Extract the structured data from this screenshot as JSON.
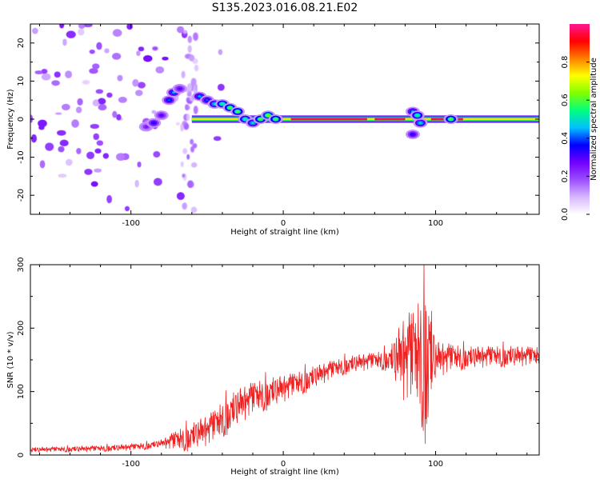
{
  "figure": {
    "title": "S135.2023.016.08.21.E02"
  },
  "chart_data": [
    {
      "type": "heatmap",
      "panel": "spectrogram",
      "xlabel": "Height of straight line (km)",
      "ylabel": "Frequency (Hz)",
      "xlim": [
        -166,
        168
      ],
      "ylim": [
        -25,
        25
      ],
      "xticks": [
        -100,
        0,
        100
      ],
      "xtick_labels": [
        "-100",
        "0",
        "100"
      ],
      "yticks": [
        -20,
        -10,
        0,
        10,
        20
      ],
      "ytick_labels": [
        "-20",
        "-10",
        "0",
        "10",
        "20"
      ],
      "grid": false,
      "colorbar": {
        "label": "Normalized spectral amplitude",
        "range": [
          0,
          1
        ],
        "ticks": [
          0.0,
          0.2,
          0.4,
          0.6,
          0.8
        ],
        "tick_labels": [
          "0.0",
          "0.2",
          "0.4",
          "0.6",
          "0.8"
        ],
        "colormap": [
          "#ffffff",
          "#d7b8ff",
          "#9b4dff",
          "#7000ff",
          "#0000ff",
          "#00bfff",
          "#00ff7f",
          "#7fff00",
          "#ffff00",
          "#ff8000",
          "#ff0000",
          "#ff1493"
        ]
      },
      "carrier": {
        "frequency": 0,
        "x_start": -60,
        "x_end": 168,
        "strong_segments": [
          [
            5,
            55
          ],
          [
            60,
            80
          ],
          [
            97,
            118
          ]
        ]
      },
      "doppler_features": [
        {
          "x": -90,
          "y": -2,
          "amp": 0.25
        },
        {
          "x": -85,
          "y": -1,
          "amp": 0.35
        },
        {
          "x": -80,
          "y": 1,
          "amp": 0.3
        },
        {
          "x": -75,
          "y": 5,
          "amp": 0.4
        },
        {
          "x": -72,
          "y": 7,
          "amp": 0.45
        },
        {
          "x": -68,
          "y": 8,
          "amp": 0.3
        },
        {
          "x": -55,
          "y": 6,
          "amp": 0.45
        },
        {
          "x": -50,
          "y": 5,
          "amp": 0.4
        },
        {
          "x": -45,
          "y": 4,
          "amp": 0.5
        },
        {
          "x": -40,
          "y": 4,
          "amp": 0.55
        },
        {
          "x": -35,
          "y": 3,
          "amp": 0.6
        },
        {
          "x": -30,
          "y": 2,
          "amp": 0.6
        },
        {
          "x": -25,
          "y": 0,
          "amp": 0.55
        },
        {
          "x": -20,
          "y": -1,
          "amp": 0.5
        },
        {
          "x": -15,
          "y": 0,
          "amp": 0.6
        },
        {
          "x": -10,
          "y": 1,
          "amp": 0.65
        },
        {
          "x": -5,
          "y": 0,
          "amp": 0.6
        },
        {
          "x": 85,
          "y": 2,
          "amp": 0.45
        },
        {
          "x": 85,
          "y": -4,
          "amp": 0.35
        },
        {
          "x": 90,
          "y": -1,
          "amp": 0.5
        },
        {
          "x": 88,
          "y": 1,
          "amp": 0.55
        },
        {
          "x": 110,
          "y": 0,
          "amp": 0.6
        }
      ]
    },
    {
      "type": "line",
      "panel": "snr",
      "xlabel": "Height of straight line (km)",
      "ylabel": "SNR (10 * v/v)",
      "xlim": [
        -166,
        168
      ],
      "ylim": [
        0,
        300
      ],
      "xticks": [
        -100,
        0,
        100
      ],
      "xtick_labels": [
        "-100",
        "0",
        "100"
      ],
      "yticks": [
        0,
        100,
        200,
        300
      ],
      "ytick_labels": [
        "0",
        "100",
        "200",
        "300"
      ],
      "grid": false,
      "series": [
        {
          "color": "#ee2222",
          "envelope_x": [
            -166,
            -140,
            -120,
            -100,
            -90,
            -80,
            -70,
            -60,
            -55,
            -50,
            -45,
            -40,
            -35,
            -30,
            -25,
            -20,
            -15,
            -10,
            -5,
            0,
            10,
            20,
            30,
            40,
            50,
            60,
            70,
            75,
            80,
            85,
            90,
            95,
            100,
            110,
            120,
            140,
            168
          ],
          "envelope_y": [
            8,
            9,
            10,
            12,
            14,
            18,
            22,
            28,
            34,
            38,
            45,
            55,
            65,
            75,
            82,
            88,
            92,
            96,
            100,
            104,
            112,
            122,
            132,
            140,
            145,
            148,
            150,
            150,
            150,
            150,
            150,
            150,
            150,
            152,
            153,
            155,
            155
          ],
          "noise_amplitude_x": [
            -166,
            -80,
            -70,
            -50,
            -40,
            -20,
            0,
            20,
            40,
            60,
            70,
            78,
            88,
            94,
            100,
            120,
            168
          ],
          "noise_amplitude": [
            4,
            6,
            18,
            25,
            30,
            28,
            22,
            18,
            14,
            14,
            18,
            65,
            90,
            140,
            30,
            18,
            16
          ]
        }
      ]
    }
  ]
}
